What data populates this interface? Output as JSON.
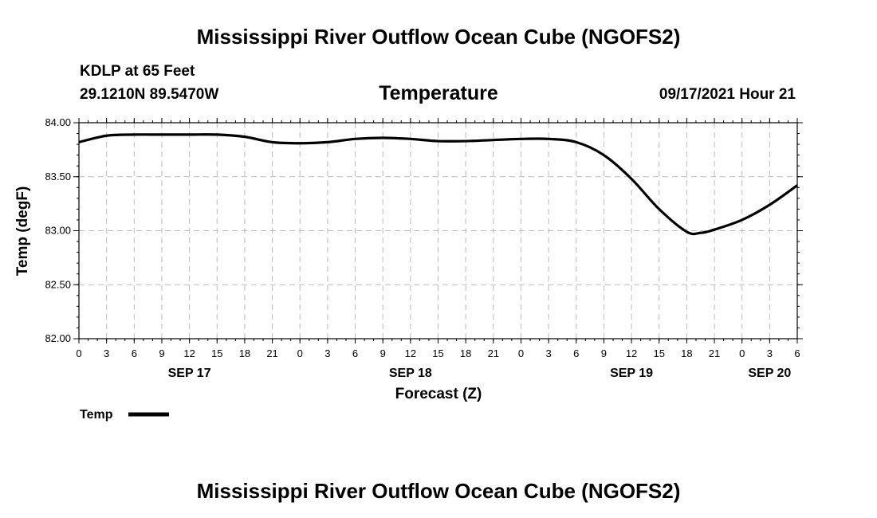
{
  "header": {
    "title": "Mississippi River Outflow Ocean Cube (NGOFS2)",
    "station": "KDLP at 65 Feet",
    "coordinates": "29.1210N  89.5470W",
    "variable": "Temperature",
    "datetime": "09/17/2021 Hour 21"
  },
  "footer": {
    "title": "Mississippi River Outflow Ocean Cube (NGOFS2)"
  },
  "legend": {
    "label": "Temp"
  },
  "colors": {
    "line": "#000000",
    "grid": "#bbbbbb",
    "axis": "#000000"
  },
  "chart_data": {
    "type": "line",
    "title": "Temperature",
    "xlabel": "Forecast (Z)",
    "ylabel": "Temp (degF)",
    "xlim": [
      0,
      78
    ],
    "ylim": [
      82.0,
      84.0
    ],
    "x_unit": "hours from 2021-09-17 00Z",
    "yticks": [
      "82.00",
      "82.50",
      "83.00",
      "83.50",
      "84.00"
    ],
    "ytick_values": [
      82.0,
      82.5,
      83.0,
      83.5,
      84.0
    ],
    "xtick_values": [
      0,
      3,
      6,
      9,
      12,
      15,
      18,
      21,
      24,
      27,
      30,
      33,
      36,
      39,
      42,
      45,
      48,
      51,
      54,
      57,
      60,
      63,
      66,
      69,
      72,
      75,
      78
    ],
    "xtick_labels": [
      "0",
      "3",
      "6",
      "9",
      "12",
      "15",
      "18",
      "21",
      "0",
      "3",
      "6",
      "9",
      "12",
      "15",
      "18",
      "21",
      "0",
      "3",
      "6",
      "9",
      "12",
      "15",
      "18",
      "21",
      "0",
      "3",
      "6"
    ],
    "date_labels": [
      {
        "x": 12,
        "label": "SEP 17"
      },
      {
        "x": 36,
        "label": "SEP 18"
      },
      {
        "x": 60,
        "label": "SEP 19"
      },
      {
        "x": 75,
        "label": "SEP 20"
      }
    ],
    "series": [
      {
        "name": "Temp",
        "x": [
          0,
          3,
          6,
          9,
          12,
          15,
          18,
          21,
          24,
          27,
          30,
          33,
          36,
          39,
          42,
          45,
          48,
          51,
          54,
          57,
          60,
          63,
          66,
          67.5,
          69,
          72,
          75,
          78
        ],
        "y": [
          83.82,
          83.88,
          83.89,
          83.89,
          83.89,
          83.89,
          83.87,
          83.82,
          83.81,
          83.82,
          83.85,
          83.86,
          83.85,
          83.83,
          83.83,
          83.84,
          83.85,
          83.85,
          83.82,
          83.7,
          83.48,
          83.2,
          82.99,
          82.98,
          83.01,
          83.1,
          83.24,
          83.42
        ]
      }
    ]
  }
}
